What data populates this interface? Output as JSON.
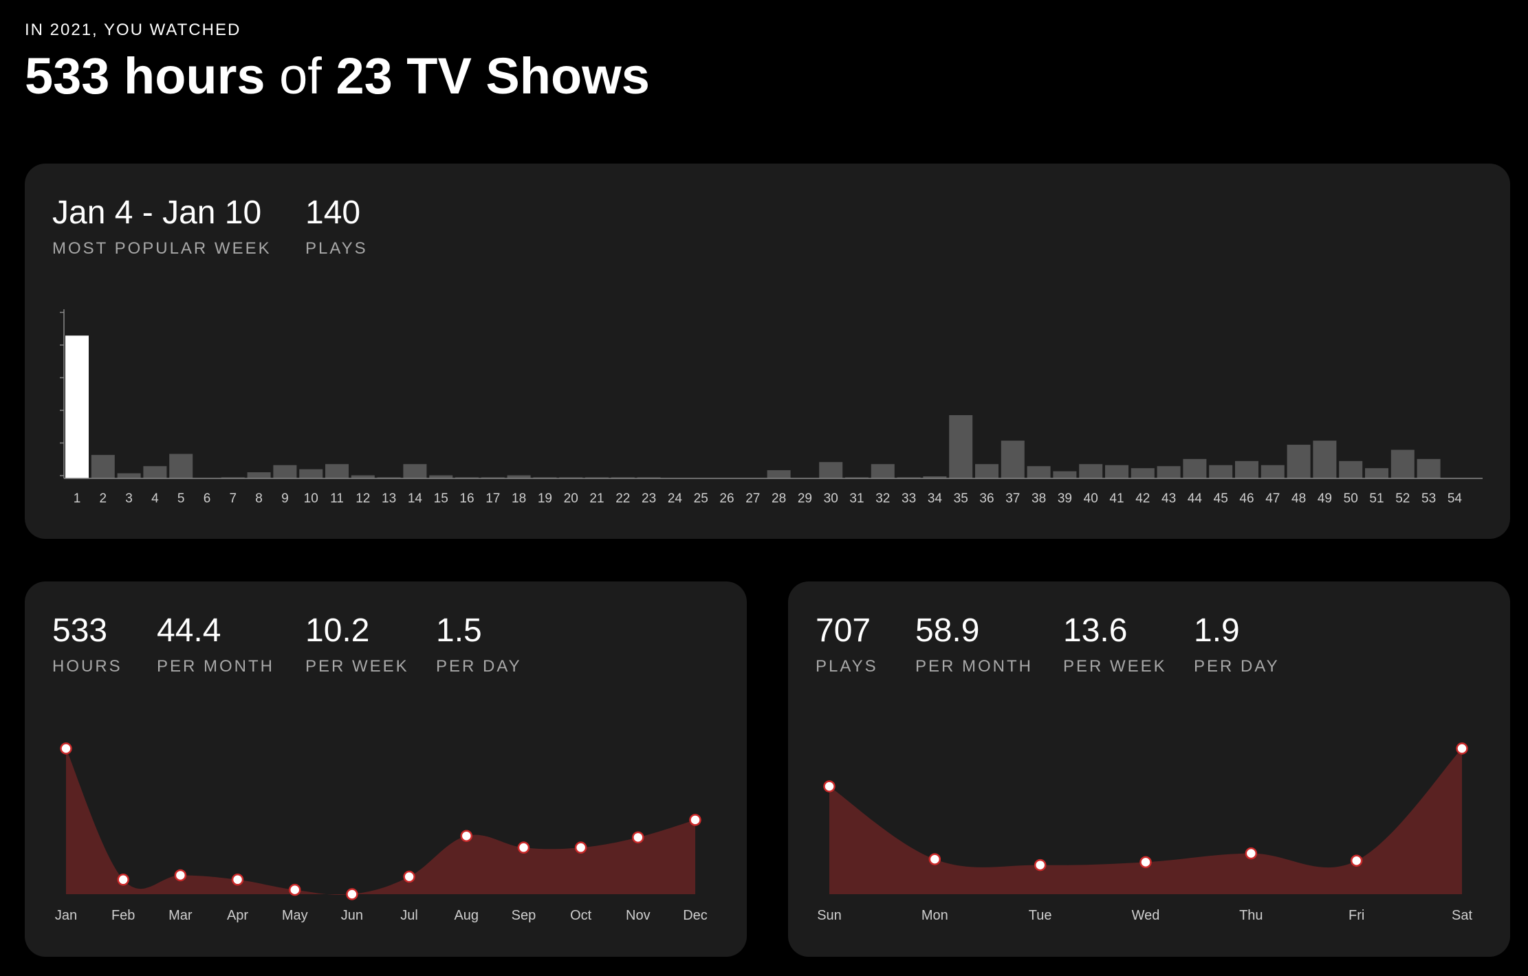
{
  "header": {
    "kicker": "IN 2021, YOU WATCHED",
    "hours_part": "533 hours",
    "of_part": "of",
    "shows_part": "23 TV Shows"
  },
  "weekly_card": {
    "week_value": "Jan 4 - Jan 10",
    "week_label": "MOST POPULAR WEEK",
    "plays_value": "140",
    "plays_label": "PLAYS"
  },
  "hours_card": {
    "stats": [
      {
        "value": "533",
        "label": "HOURS"
      },
      {
        "value": "44.4",
        "label": "PER MONTH"
      },
      {
        "value": "10.2",
        "label": "PER WEEK"
      },
      {
        "value": "1.5",
        "label": "PER DAY"
      }
    ]
  },
  "plays_card": {
    "stats": [
      {
        "value": "707",
        "label": "PLAYS"
      },
      {
        "value": "58.9",
        "label": "PER MONTH"
      },
      {
        "value": "13.6",
        "label": "PER WEEK"
      },
      {
        "value": "1.9",
        "label": "PER DAY"
      }
    ]
  },
  "colors": {
    "background": "#000000",
    "card": "#1c1c1c",
    "bar": "#555555",
    "bar_highlight": "#ffffff",
    "area_fill": "#5a2222",
    "marker_stroke": "#cc2a2a"
  },
  "chart_data": [
    {
      "type": "bar",
      "categories": [
        "1",
        "2",
        "3",
        "4",
        "5",
        "6",
        "7",
        "8",
        "9",
        "10",
        "11",
        "12",
        "13",
        "14",
        "15",
        "16",
        "17",
        "18",
        "19",
        "20",
        "21",
        "22",
        "23",
        "24",
        "25",
        "26",
        "27",
        "28",
        "29",
        "30",
        "31",
        "32",
        "33",
        "34",
        "35",
        "36",
        "37",
        "38",
        "39",
        "40",
        "41",
        "42",
        "43",
        "44",
        "45",
        "46",
        "47",
        "48",
        "49",
        "50",
        "51",
        "52",
        "53",
        "54"
      ],
      "values": [
        140,
        23,
        5,
        12,
        24,
        0,
        1,
        6,
        13,
        9,
        14,
        3,
        1,
        14,
        3,
        1,
        1,
        3,
        1,
        1,
        1,
        1,
        1,
        0,
        0,
        0,
        0,
        8,
        0,
        16,
        1,
        14,
        1,
        2,
        62,
        14,
        37,
        12,
        7,
        14,
        13,
        10,
        12,
        19,
        13,
        17,
        13,
        33,
        37,
        17,
        10,
        28,
        19,
        0
      ],
      "highlight_index": 0,
      "ylim": [
        0,
        155
      ],
      "grid": false
    },
    {
      "type": "area",
      "categories": [
        "Jan",
        "Feb",
        "Mar",
        "Apr",
        "May",
        "Jun",
        "Jul",
        "Aug",
        "Sep",
        "Oct",
        "Nov",
        "Dec"
      ],
      "values": [
        100,
        10,
        13,
        10,
        3,
        0,
        12,
        40,
        32,
        32,
        39,
        51
      ],
      "ylim": [
        0,
        100
      ],
      "grid": false
    },
    {
      "type": "area",
      "categories": [
        "Sun",
        "Mon",
        "Tue",
        "Wed",
        "Thu",
        "Fri",
        "Sat"
      ],
      "values": [
        74,
        24,
        20,
        22,
        28,
        23,
        100
      ],
      "ylim": [
        0,
        100
      ],
      "grid": false
    }
  ]
}
